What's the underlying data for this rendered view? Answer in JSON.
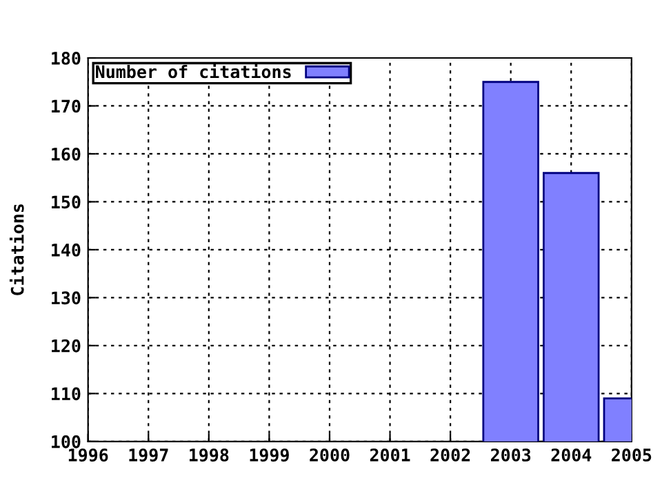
{
  "chart_data": {
    "type": "bar",
    "x": [
      2003,
      2004,
      2005
    ],
    "series": [
      {
        "name": "Number of citations",
        "color": "#8080ff",
        "values": [
          175,
          156,
          109
        ]
      }
    ],
    "ylabel": "Citations",
    "xlim": [
      1996,
      2005
    ],
    "xticks": [
      1996,
      1997,
      1998,
      1999,
      2000,
      2001,
      2002,
      2003,
      2004,
      2005
    ],
    "ylim": [
      100,
      180
    ],
    "yticks": [
      100,
      110,
      120,
      130,
      140,
      150,
      160,
      170,
      180
    ],
    "grid": true,
    "legend": "top left"
  }
}
